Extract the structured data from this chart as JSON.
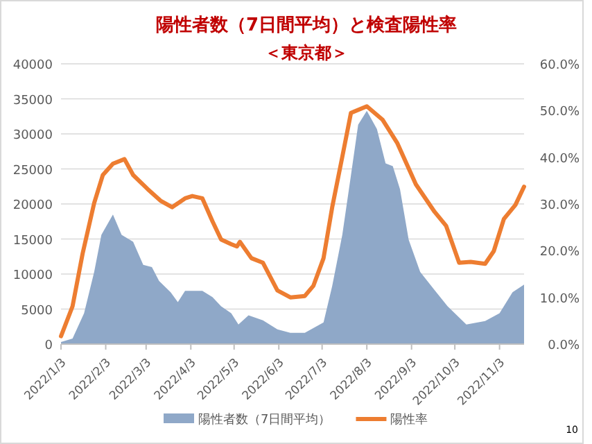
{
  "chart_data": {
    "type": "area",
    "title": "陽性者数（7日間平均）と検査陽性率",
    "subtitle": "＜東京都＞",
    "xlim": [
      "2022-01-03",
      "2022-11-20"
    ],
    "xticks": [
      {
        "value": "2022-01-03",
        "label": "2022/1/3"
      },
      {
        "value": "2022-02-03",
        "label": "2022/2/3"
      },
      {
        "value": "2022-03-03",
        "label": "2022/3/3"
      },
      {
        "value": "2022-04-03",
        "label": "2022/4/3"
      },
      {
        "value": "2022-05-03",
        "label": "2022/5/3"
      },
      {
        "value": "2022-06-03",
        "label": "2022/6/3"
      },
      {
        "value": "2022-07-03",
        "label": "2022/7/3"
      },
      {
        "value": "2022-08-03",
        "label": "2022/8/3"
      },
      {
        "value": "2022-09-03",
        "label": "2022/9/3"
      },
      {
        "value": "2022-10-03",
        "label": "2022/10/3"
      },
      {
        "value": "2022-11-03",
        "label": "2022/11/3"
      }
    ],
    "ylim": [
      0,
      40000
    ],
    "yticks": [
      0,
      5000,
      10000,
      15000,
      20000,
      25000,
      30000,
      35000,
      40000
    ],
    "y2lim": [
      0,
      60
    ],
    "y2ticks": [
      {
        "value": 0,
        "label": "0.0%"
      },
      {
        "value": 10,
        "label": "10.0%"
      },
      {
        "value": 20,
        "label": "20.0%"
      },
      {
        "value": 30,
        "label": "30.0%"
      },
      {
        "value": 40,
        "label": "40.0%"
      },
      {
        "value": 50,
        "label": "50.0%"
      },
      {
        "value": 60,
        "label": "60.0%"
      }
    ],
    "grid": "y",
    "legend": "bottom",
    "annotations": [
      "10"
    ],
    "series": [
      {
        "name": "陽性者数（7日間平均）",
        "type": "area",
        "color": "#8fa8c8",
        "x": [
          "2022-01-03",
          "2022-01-11",
          "2022-01-19",
          "2022-01-26",
          "2022-01-31",
          "2022-02-08",
          "2022-02-14",
          "2022-02-22",
          "2022-03-01",
          "2022-03-07",
          "2022-03-12",
          "2022-03-20",
          "2022-03-25",
          "2022-03-30",
          "2022-04-11",
          "2022-04-18",
          "2022-04-24",
          "2022-05-01",
          "2022-05-06",
          "2022-05-13",
          "2022-05-23",
          "2022-06-02",
          "2022-06-11",
          "2022-06-21",
          "2022-07-04",
          "2022-07-10",
          "2022-07-17",
          "2022-07-23",
          "2022-07-28",
          "2022-08-03",
          "2022-08-10",
          "2022-08-16",
          "2022-08-21",
          "2022-08-26",
          "2022-09-01",
          "2022-09-09",
          "2022-09-19",
          "2022-09-28",
          "2022-10-11",
          "2022-10-24",
          "2022-11-03",
          "2022-11-12",
          "2022-11-20"
        ],
        "values": [
          300,
          800,
          4400,
          10300,
          15600,
          18500,
          15600,
          14600,
          11300,
          11000,
          9000,
          7400,
          6000,
          7600,
          7600,
          6700,
          5400,
          4400,
          2800,
          4100,
          3400,
          2100,
          1600,
          1600,
          3100,
          8300,
          15600,
          24100,
          31300,
          33300,
          30700,
          25800,
          25400,
          22100,
          14900,
          10300,
          7700,
          5400,
          2800,
          3300,
          4400,
          7400,
          8500
        ]
      },
      {
        "name": "陽性率",
        "type": "line",
        "axis": "y2",
        "color": "#ed7d31",
        "x": [
          "2022-01-03",
          "2022-01-11",
          "2022-01-18",
          "2022-01-26",
          "2022-02-01",
          "2022-02-08",
          "2022-02-16",
          "2022-02-22",
          "2022-03-04",
          "2022-03-13",
          "2022-03-21",
          "2022-03-30",
          "2022-04-04",
          "2022-04-11",
          "2022-04-18",
          "2022-04-24",
          "2022-05-01",
          "2022-05-05",
          "2022-05-07",
          "2022-05-15",
          "2022-05-23",
          "2022-06-02",
          "2022-06-11",
          "2022-06-21",
          "2022-06-27",
          "2022-07-04",
          "2022-07-10",
          "2022-07-17",
          "2022-07-23",
          "2022-08-03",
          "2022-08-14",
          "2022-08-24",
          "2022-09-06",
          "2022-09-19",
          "2022-09-27",
          "2022-10-06",
          "2022-10-14",
          "2022-10-24",
          "2022-10-30",
          "2022-11-06",
          "2022-11-14",
          "2022-11-20"
        ],
        "values": [
          1.7,
          8.1,
          19.4,
          30.2,
          36.2,
          38.6,
          39.6,
          36.2,
          33.2,
          30.7,
          29.3,
          31.2,
          31.7,
          31.2,
          26.3,
          22.4,
          21.4,
          20.9,
          21.9,
          18.4,
          17.4,
          11.5,
          10.0,
          10.3,
          12.5,
          18.4,
          29.3,
          40.1,
          49.5,
          50.9,
          48.0,
          43.1,
          34.2,
          28.3,
          25.3,
          17.4,
          17.6,
          17.2,
          19.9,
          26.8,
          29.8,
          33.7
        ]
      }
    ]
  }
}
